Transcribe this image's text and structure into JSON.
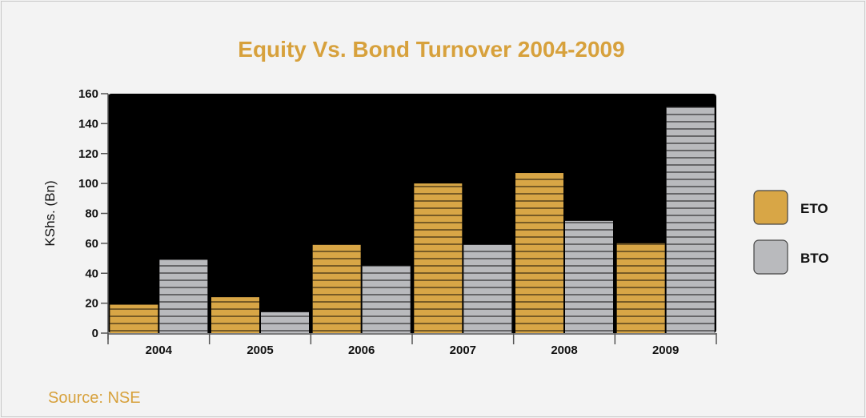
{
  "chart_data": {
    "type": "bar",
    "title": "Equity Vs. Bond Turnover 2004-2009",
    "ylabel": "KShs. (Bn)",
    "xlabel": "",
    "categories": [
      "2004",
      "2005",
      "2006",
      "2007",
      "2008",
      "2009"
    ],
    "series": [
      {
        "name": "ETO",
        "values": [
          19,
          24,
          59,
          100,
          107,
          60
        ],
        "color": "#d8a646"
      },
      {
        "name": "BTO",
        "values": [
          49,
          14,
          45,
          59,
          75,
          151
        ],
        "color": "#b9babd"
      }
    ],
    "ylim": [
      0,
      160
    ],
    "yticks": [
      0,
      20,
      40,
      60,
      80,
      100,
      120,
      140,
      160
    ],
    "plot_background": "#000000",
    "grid": false,
    "legend_position": "right"
  },
  "source": "Source: NSE"
}
